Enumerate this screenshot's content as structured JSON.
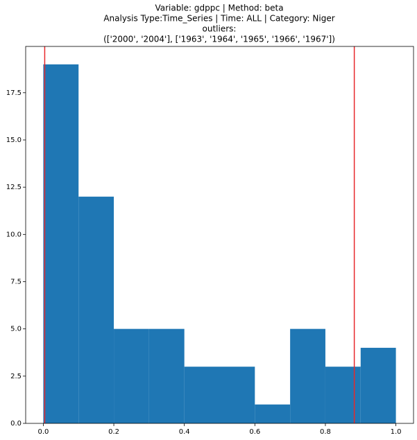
{
  "chart_data": {
    "type": "histogram",
    "title": [
      "Variable: gdppc | Method: beta",
      "Analysis Type:Time_Series | Time: ALL | Category: Niger",
      "outliers:",
      "(['2000', '2004'], ['1963', '1964', '1965', '1966', '1967'])"
    ],
    "bins": [
      0,
      0.1,
      0.2,
      0.3,
      0.4,
      0.5,
      0.6,
      0.7,
      0.8,
      0.9,
      1.0
    ],
    "counts": [
      19,
      12,
      5,
      5,
      3,
      3,
      1,
      5,
      3,
      4
    ],
    "color": "#1f77b4",
    "vlines": [
      0.004,
      0.882
    ],
    "vline_color": "#e8282b",
    "xlim": [
      -0.05,
      1.05
    ],
    "xticks": [
      {
        "value": 0,
        "label": "0.0"
      },
      0.2,
      0.4,
      0.6,
      0.8,
      {
        "value": 1,
        "label": "1.0"
      }
    ],
    "ylim": [
      0,
      19.95
    ],
    "yticks": [
      {
        "value": 0,
        "label": "0.0"
      },
      2.5,
      {
        "value": 5,
        "label": "5.0"
      },
      7.5,
      {
        "value": 10,
        "label": "10.0"
      },
      12.5,
      {
        "value": 15,
        "label": "15.0"
      },
      17.5
    ]
  }
}
